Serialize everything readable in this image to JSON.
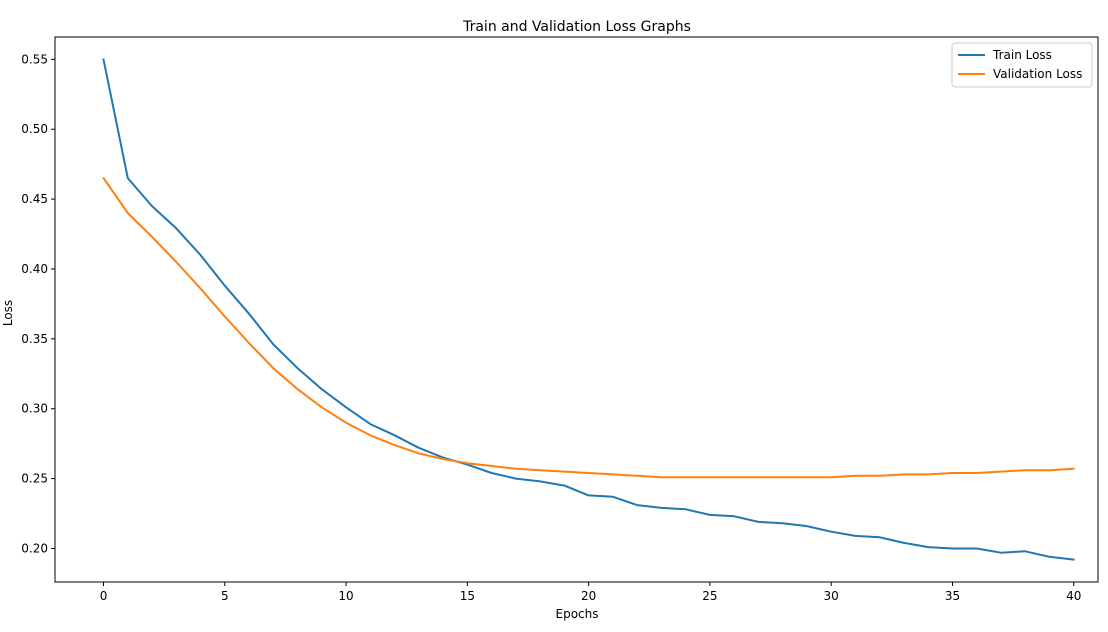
{
  "chart_data": {
    "type": "line",
    "title": "Train and Validation Loss Graphs",
    "xlabel": "Epochs",
    "ylabel": "Loss",
    "xlim": [
      -2,
      41
    ],
    "ylim": [
      0.176,
      0.566
    ],
    "xticks": [
      0,
      5,
      10,
      15,
      20,
      25,
      30,
      35,
      40
    ],
    "yticks": [
      0.2,
      0.25,
      0.3,
      0.35,
      0.4,
      0.45,
      0.5,
      0.55
    ],
    "ytick_labels": [
      "0.20",
      "0.25",
      "0.30",
      "0.35",
      "0.40",
      "0.45",
      "0.50",
      "0.55"
    ],
    "grid": false,
    "legend_position": "top-right",
    "x": [
      0,
      1,
      2,
      3,
      4,
      5,
      6,
      7,
      8,
      9,
      10,
      11,
      12,
      13,
      14,
      15,
      16,
      17,
      18,
      19,
      20,
      21,
      22,
      23,
      24,
      25,
      26,
      27,
      28,
      29,
      30,
      31,
      32,
      33,
      34,
      35,
      36,
      37,
      38,
      39,
      40
    ],
    "series": [
      {
        "name": "Train Loss",
        "color": "#1f77b4",
        "values": [
          0.55,
          0.465,
          0.445,
          0.429,
          0.41,
          0.388,
          0.368,
          0.346,
          0.329,
          0.314,
          0.301,
          0.289,
          0.281,
          0.272,
          0.265,
          0.26,
          0.254,
          0.25,
          0.248,
          0.245,
          0.238,
          0.237,
          0.231,
          0.229,
          0.228,
          0.224,
          0.223,
          0.219,
          0.218,
          0.216,
          0.212,
          0.209,
          0.208,
          0.204,
          0.201,
          0.2,
          0.2,
          0.197,
          0.198,
          0.194,
          0.192
        ]
      },
      {
        "name": "Validation Loss",
        "color": "#ff7f0e",
        "values": [
          0.465,
          0.44,
          0.423,
          0.405,
          0.386,
          0.366,
          0.347,
          0.329,
          0.314,
          0.301,
          0.29,
          0.281,
          0.274,
          0.268,
          0.264,
          0.261,
          0.259,
          0.257,
          0.256,
          0.255,
          0.254,
          0.253,
          0.252,
          0.251,
          0.251,
          0.251,
          0.251,
          0.251,
          0.251,
          0.251,
          0.251,
          0.252,
          0.252,
          0.253,
          0.253,
          0.254,
          0.254,
          0.255,
          0.256,
          0.256,
          0.257
        ]
      }
    ]
  }
}
